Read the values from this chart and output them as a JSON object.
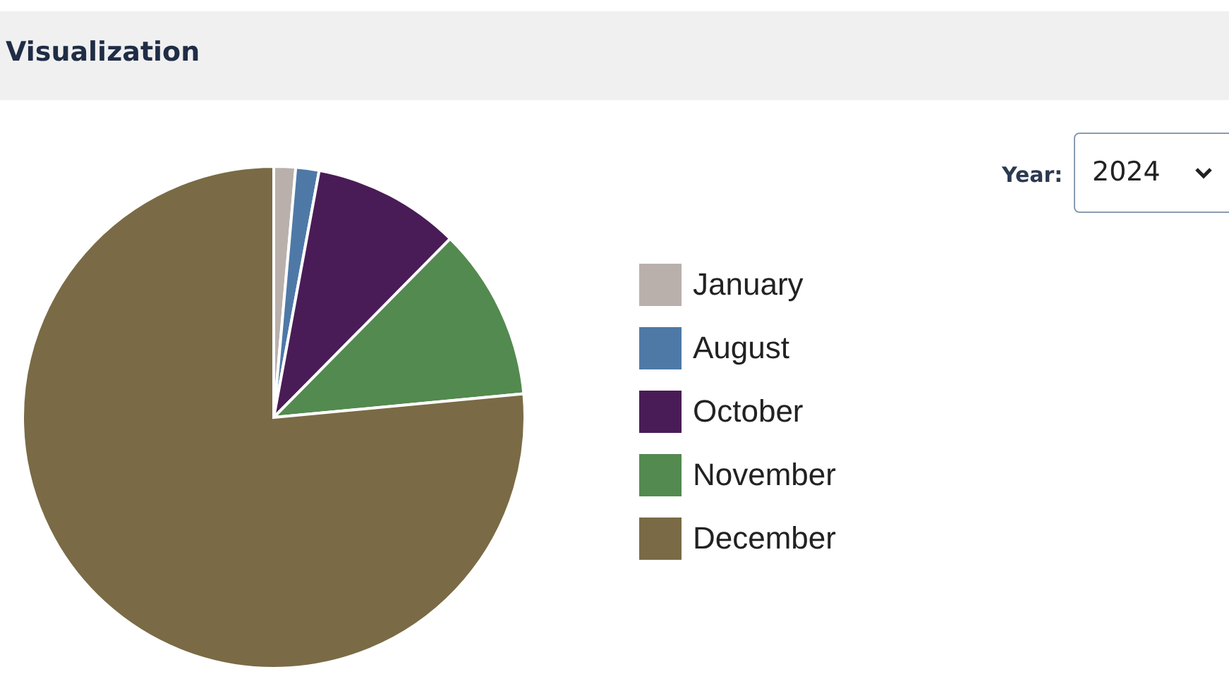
{
  "chart_data": {
    "type": "pie",
    "title": "Visualization",
    "annotations": [
      "Year:",
      "2024"
    ],
    "categories": [
      "January",
      "August",
      "October",
      "November",
      "December"
    ],
    "values": [
      1.4,
      1.5,
      9.5,
      11.1,
      76.5
    ],
    "colors": [
      "#b9b0ac",
      "#4e79a7",
      "#4a1c57",
      "#538a4f",
      "#7a6b46"
    ],
    "legend": "right"
  }
}
